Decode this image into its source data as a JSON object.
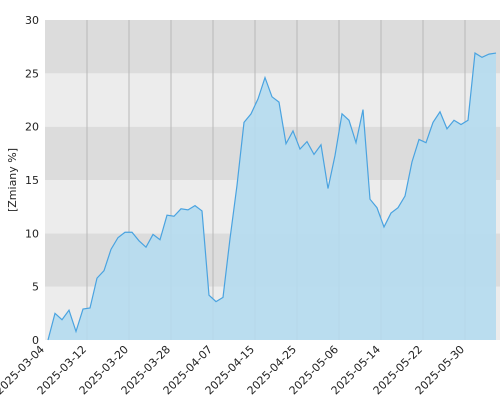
{
  "chart_data": {
    "type": "area",
    "y_label": "[Zmiany %]",
    "categories": [
      "2025-03-04",
      null,
      null,
      null,
      null,
      null,
      "2025-03-12",
      null,
      null,
      null,
      null,
      null,
      "2025-03-20",
      null,
      null,
      null,
      null,
      null,
      "2025-03-28",
      null,
      null,
      null,
      null,
      null,
      "2025-04-07",
      null,
      null,
      null,
      null,
      null,
      "2025-04-15",
      null,
      null,
      null,
      null,
      null,
      "2025-04-25",
      null,
      null,
      null,
      null,
      null,
      "2025-05-06",
      null,
      null,
      null,
      null,
      null,
      "2025-05-14",
      null,
      null,
      null,
      null,
      null,
      "2025-05-22",
      null,
      null,
      null,
      null,
      null,
      "2025-05-30",
      null,
      null,
      null,
      null
    ],
    "values": [
      0,
      2.5,
      1.9,
      2.8,
      0.8,
      2.9,
      3.0,
      5.8,
      6.5,
      8.5,
      9.6,
      10.1,
      10.1,
      9.3,
      8.7,
      9.9,
      9.4,
      11.7,
      11.6,
      12.3,
      12.2,
      12.6,
      12.1,
      4.2,
      3.6,
      4.0,
      9.5,
      14.5,
      20.4,
      21.2,
      22.6,
      24.6,
      22.8,
      22.3,
      18.4,
      19.6,
      17.9,
      18.6,
      17.4,
      18.3,
      14.2,
      17.3,
      21.2,
      20.6,
      18.5,
      21.6,
      13.2,
      12.4,
      10.6,
      11.9,
      12.4,
      13.5,
      16.7,
      18.8,
      18.5,
      20.4,
      21.4,
      19.8,
      20.6,
      20.2,
      20.6,
      26.9,
      26.5,
      26.8,
      26.9
    ],
    "color": "#4aa3e0",
    "fill_color": "#b5dcef",
    "ylim": [
      0,
      30
    ],
    "yticks": [
      0,
      5,
      10,
      15,
      20,
      25,
      30
    ],
    "grid": true
  }
}
